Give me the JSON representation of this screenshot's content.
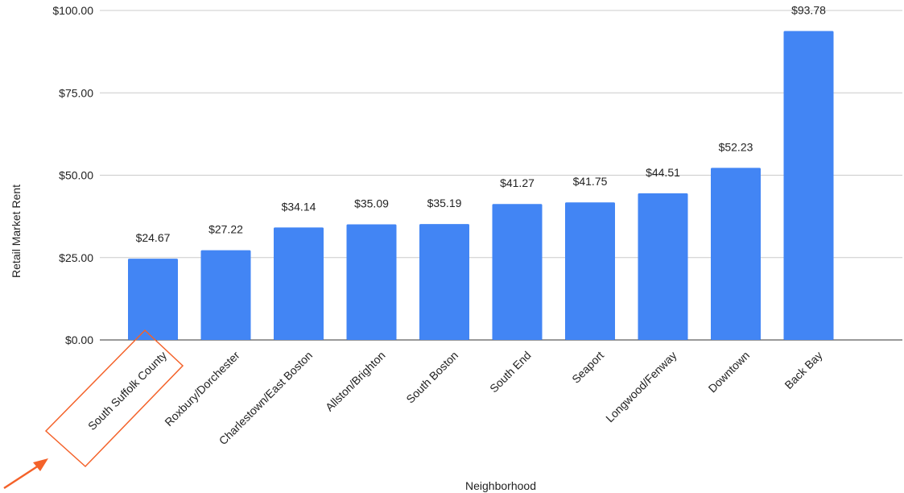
{
  "chart_data": {
    "type": "bar",
    "title": "",
    "xlabel": "Neighborhood",
    "ylabel": "Retail Market Rent",
    "ylim": [
      0,
      100
    ],
    "y_ticks": [
      "$0.00",
      "$25.00",
      "$50.00",
      "$75.00",
      "$100.00"
    ],
    "y_tick_values": [
      0,
      25,
      50,
      75,
      100
    ],
    "grid": true,
    "categories": [
      "South Suffolk County",
      "Roxbury/Dorchester",
      "Charlestown/East Boston",
      "Allston/Brighton",
      "South Boston",
      "South End",
      "Seaport",
      "Longwood/Fenway",
      "Downtown",
      "Back Bay"
    ],
    "values": [
      24.67,
      27.22,
      34.14,
      35.09,
      35.19,
      41.27,
      41.75,
      44.51,
      52.23,
      93.78
    ],
    "value_labels": [
      "$24.67",
      "$27.22",
      "$34.14",
      "$35.09",
      "$35.19",
      "$41.27",
      "$41.75",
      "$44.51",
      "$52.23",
      "$93.78"
    ],
    "bar_color": "#4285f4",
    "annotation": {
      "type": "highlight-box-with-arrow",
      "target": "South Suffolk County",
      "color": "#f4622a"
    }
  }
}
